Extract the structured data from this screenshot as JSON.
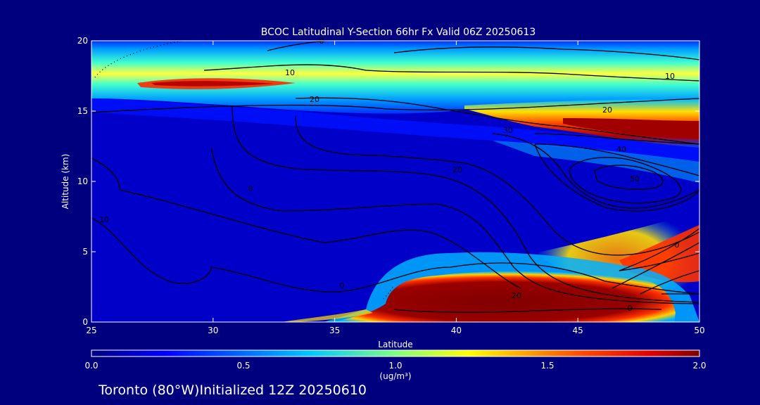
{
  "chart_data": {
    "type": "heatmap",
    "title": "BCOC Latitudinal Y-Section 66hr  Fx Valid 06Z 20250613",
    "xlabel": "Latitude",
    "ylabel": "Altitude (km)",
    "xlim": [
      25,
      50
    ],
    "ylim": [
      0,
      20
    ],
    "x_ticks": [
      "25",
      "30",
      "35",
      "40",
      "45",
      "50"
    ],
    "y_ticks": [
      "0",
      "5",
      "10",
      "15",
      "20"
    ],
    "colorbar": {
      "range": [
        0.0,
        2.0
      ],
      "ticks": [
        "0.0",
        "0.5",
        "1.0",
        "1.5",
        "2.0"
      ],
      "units": "(ug/m³)"
    },
    "contour_labels": [
      "0",
      "10",
      "10",
      "20",
      "20",
      "30",
      "40",
      "50",
      "20",
      "0",
      "10",
      "0",
      "0",
      "20",
      "0"
    ],
    "footer": "Toronto (80°W)Initialized 12Z 20250610",
    "colors": {
      "background": "#00007f",
      "low": "#0000c8",
      "high": "#7f0000"
    }
  }
}
